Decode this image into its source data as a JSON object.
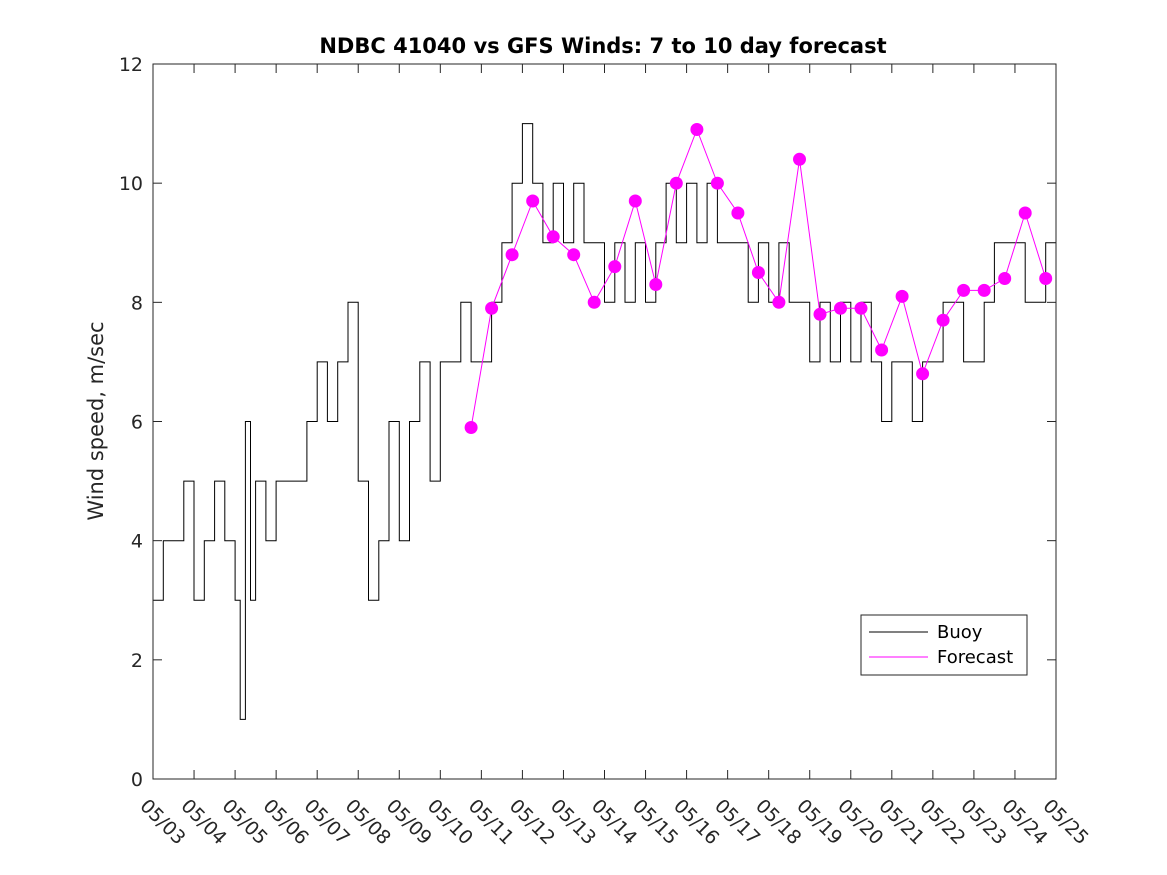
{
  "chart_data": {
    "type": "line",
    "title": "NDBC 41040 vs GFS Winds: 7 to 10 day forecast",
    "xlabel": "",
    "ylabel": "Wind speed, m/sec",
    "xlim": [
      "05/03",
      "05/25"
    ],
    "ylim": [
      0,
      12
    ],
    "grid": false,
    "legend_position": "bottom-right",
    "x_ticks": [
      "05/03",
      "05/04",
      "05/05",
      "05/06",
      "05/07",
      "05/08",
      "05/09",
      "05/10",
      "05/11",
      "05/12",
      "05/13",
      "05/14",
      "05/15",
      "05/16",
      "05/17",
      "05/18",
      "05/19",
      "05/20",
      "05/21",
      "05/22",
      "05/23",
      "05/24",
      "05/25"
    ],
    "y_ticks": [
      0,
      2,
      4,
      6,
      8,
      10,
      12
    ],
    "colors": {
      "buoy": "#000000",
      "forecast": "#ff00ff"
    },
    "series": [
      {
        "name": "Buoy",
        "style": "step-line",
        "x": [
          "05/03 00:00",
          "05/03 06:00",
          "05/03 12:00",
          "05/03 18:00",
          "05/04 00:00",
          "05/04 06:00",
          "05/04 12:00",
          "05/04 18:00",
          "05/05 00:00",
          "05/05 03:00",
          "05/05 06:00",
          "05/05 09:00",
          "05/05 12:00",
          "05/05 18:00",
          "05/06 00:00",
          "05/06 06:00",
          "05/06 12:00",
          "05/06 18:00",
          "05/07 00:00",
          "05/07 06:00",
          "05/07 12:00",
          "05/07 18:00",
          "05/08 00:00",
          "05/08 06:00",
          "05/08 12:00",
          "05/08 18:00",
          "05/09 00:00",
          "05/09 06:00",
          "05/09 12:00",
          "05/09 18:00",
          "05/10 00:00",
          "05/10 06:00",
          "05/10 12:00",
          "05/10 18:00",
          "05/11 00:00",
          "05/11 06:00",
          "05/11 12:00",
          "05/11 18:00",
          "05/12 00:00",
          "05/12 06:00",
          "05/12 12:00",
          "05/12 18:00",
          "05/13 00:00",
          "05/13 06:00",
          "05/13 12:00",
          "05/13 18:00",
          "05/14 00:00",
          "05/14 06:00",
          "05/14 12:00",
          "05/14 18:00",
          "05/15 00:00",
          "05/15 06:00",
          "05/15 12:00",
          "05/15 18:00",
          "05/16 00:00",
          "05/16 06:00",
          "05/16 12:00",
          "05/16 18:00",
          "05/17 00:00",
          "05/17 06:00",
          "05/17 12:00",
          "05/17 18:00",
          "05/18 00:00",
          "05/18 06:00",
          "05/18 12:00",
          "05/18 18:00",
          "05/19 00:00",
          "05/19 06:00",
          "05/19 12:00",
          "05/19 18:00",
          "05/20 00:00",
          "05/20 06:00",
          "05/20 12:00",
          "05/20 18:00",
          "05/21 00:00",
          "05/21 06:00",
          "05/21 12:00",
          "05/21 18:00",
          "05/22 00:00",
          "05/22 06:00",
          "05/22 12:00",
          "05/22 18:00",
          "05/23 00:00",
          "05/23 06:00",
          "05/23 12:00",
          "05/23 18:00",
          "05/24 00:00",
          "05/24 06:00",
          "05/24 12:00",
          "05/24 18:00",
          "05/25 00:00"
        ],
        "values": [
          3,
          4,
          4,
          5,
          3,
          4,
          5,
          4,
          3,
          1,
          6,
          3,
          5,
          4,
          5,
          5,
          5,
          6,
          7,
          6,
          7,
          8,
          5,
          3,
          4,
          6,
          4,
          6,
          7,
          5,
          7,
          7,
          8,
          7,
          7,
          8,
          9,
          10,
          11,
          10,
          9,
          10,
          9,
          10,
          9,
          9,
          8,
          9,
          8,
          9,
          8,
          9,
          10,
          9,
          10,
          9,
          10,
          9,
          9,
          9,
          8,
          9,
          8,
          9,
          8,
          8,
          7,
          8,
          7,
          8,
          7,
          8,
          7,
          6,
          7,
          7,
          6,
          7,
          7,
          8,
          8,
          7,
          7,
          8,
          9,
          9,
          9,
          8,
          8,
          9,
          8
        ]
      },
      {
        "name": "Forecast",
        "style": "lines-and-markers",
        "x": [
          "05/10 18:00",
          "05/11 06:00",
          "05/11 18:00",
          "05/12 06:00",
          "05/12 18:00",
          "05/13 06:00",
          "05/13 18:00",
          "05/14 06:00",
          "05/14 18:00",
          "05/15 06:00",
          "05/15 18:00",
          "05/16 06:00",
          "05/16 18:00",
          "05/17 06:00",
          "05/17 18:00",
          "05/18 06:00",
          "05/18 18:00",
          "05/19 06:00",
          "05/19 18:00",
          "05/20 06:00",
          "05/20 18:00",
          "05/21 06:00",
          "05/21 18:00",
          "05/22 06:00",
          "05/22 18:00",
          "05/23 06:00",
          "05/23 18:00",
          "05/24 06:00",
          "05/24 18:00"
        ],
        "values": [
          5.9,
          7.9,
          8.8,
          9.7,
          9.1,
          8.8,
          8.0,
          8.6,
          9.7,
          8.3,
          10.0,
          10.9,
          10.0,
          9.5,
          8.5,
          8.0,
          10.4,
          7.8,
          7.9,
          7.9,
          7.2,
          8.1,
          6.8,
          7.7,
          8.2,
          8.2,
          8.4,
          9.5,
          8.4
        ]
      }
    ]
  }
}
